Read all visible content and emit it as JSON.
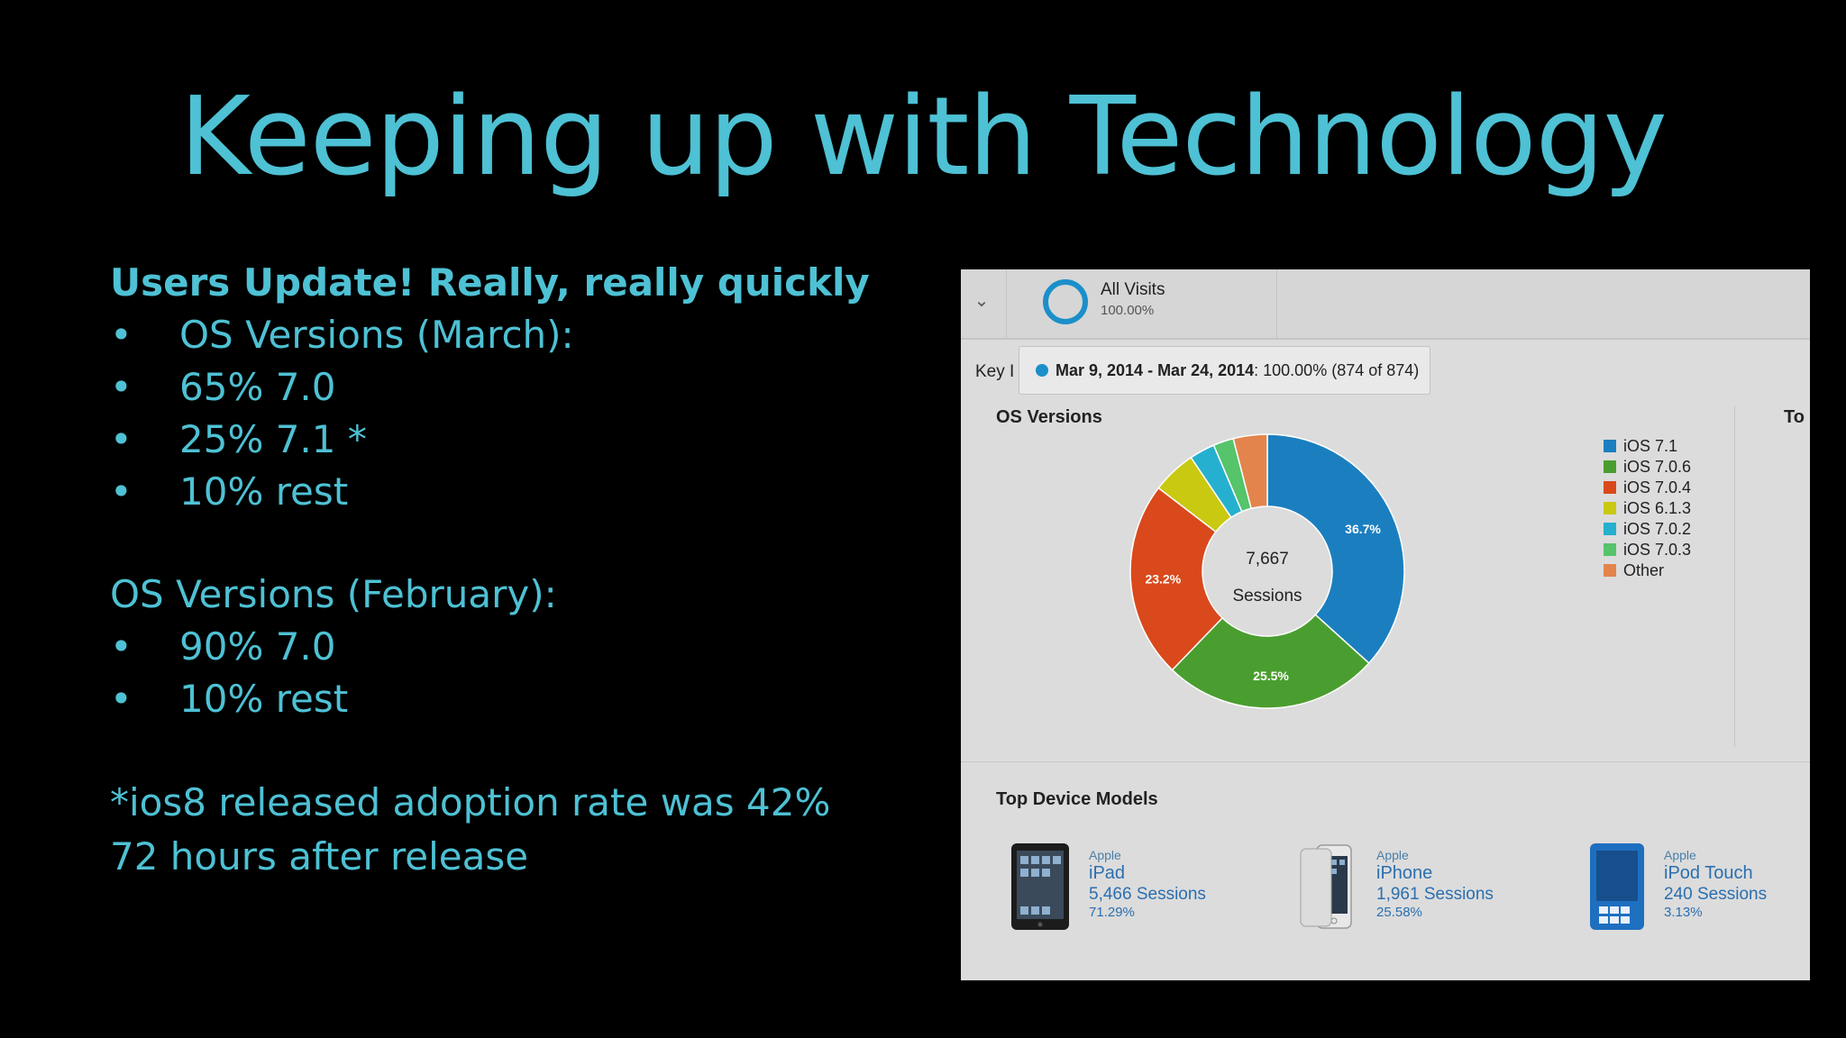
{
  "slide": {
    "title": "Keeping up with Technology",
    "heading": "Users Update! Really, really quickly",
    "march_label": "OS Versions (March):",
    "march_items": [
      "65% 7.0",
      "25% 7.1 *",
      "10% rest"
    ],
    "february_label": "OS Versions (February):",
    "february_items": [
      "90% 7.0",
      "10% rest"
    ],
    "footnote_line1": "*ios8 released adoption rate was 42%",
    "footnote_line2": "72 hours after release",
    "bullet_char": "•",
    "accent_color": "#4ec1d4"
  },
  "screenshot": {
    "segment": {
      "name": "All Visits",
      "percent": "100.00%"
    },
    "key_label": "Key I",
    "tooltip": {
      "date_range": "Mar 9, 2014 - Mar 24, 2014",
      "value": ": 100.00% (874 of 874)"
    },
    "os_title": "OS Versions",
    "side_title": "To",
    "donut_center": {
      "value": "7,667",
      "label": "Sessions"
    },
    "device_title": "Top Device Models",
    "devices": [
      {
        "brand": "Apple",
        "name": "iPad",
        "sessions": "5,466 Sessions",
        "share": "71.29%",
        "icon": "ipad-icon"
      },
      {
        "brand": "Apple",
        "name": "iPhone",
        "sessions": "1,961 Sessions",
        "share": "25.58%",
        "icon": "iphone-icon"
      },
      {
        "brand": "Apple",
        "name": "iPod Touch",
        "sessions": "240 Sessions",
        "share": "3.13%",
        "icon": "ipod-touch-icon"
      }
    ]
  },
  "chart_data": {
    "type": "pie",
    "title": "OS Versions",
    "categories": [
      "iOS 7.1",
      "iOS 7.0.6",
      "iOS 7.0.4",
      "iOS 6.1.3",
      "iOS 7.0.2",
      "iOS 7.0.3",
      "Other"
    ],
    "values": [
      36.7,
      25.5,
      23.2,
      5.2,
      3.0,
      2.4,
      4.0
    ],
    "data_labels": [
      "36.7%",
      "25.5%",
      "23.2%",
      "",
      "",
      "",
      ""
    ],
    "colors": [
      "#1b7fbf",
      "#4a9e2f",
      "#d9491c",
      "#c9c912",
      "#26b0cf",
      "#55c46a",
      "#e3844c"
    ],
    "legend_position": "right",
    "center_text": [
      "7,667",
      "Sessions"
    ]
  }
}
